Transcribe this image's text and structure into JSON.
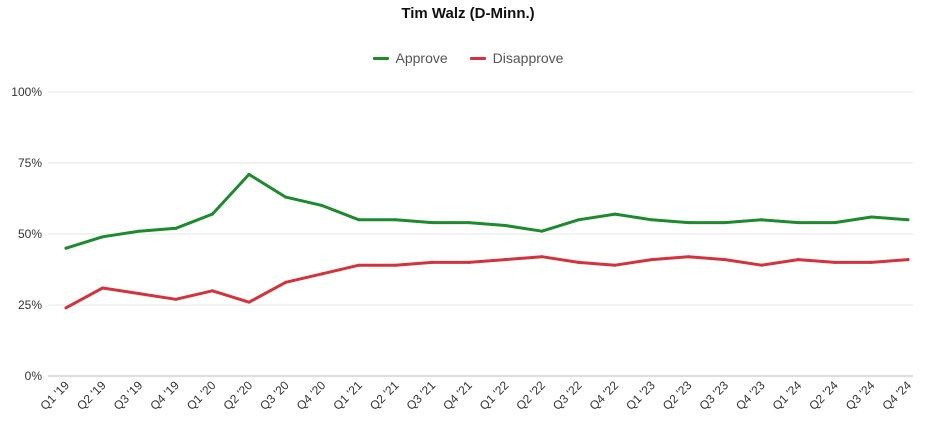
{
  "chart_data": {
    "type": "line",
    "title": "Tim Walz (D-Minn.)",
    "xlabel": "",
    "ylabel": "",
    "ylim": [
      0,
      100
    ],
    "yticks": [
      "0%",
      "25%",
      "50%",
      "75%",
      "100%"
    ],
    "categories": [
      "Q1 '19",
      "Q2 '19",
      "Q3 '19",
      "Q4 '19",
      "Q1 '20",
      "Q2 '20",
      "Q3 '20",
      "Q4 '20",
      "Q1 '21",
      "Q2 '21",
      "Q3 '21",
      "Q4 '21",
      "Q1 '22",
      "Q2 '22",
      "Q3 '22",
      "Q4 '22",
      "Q1 '23",
      "Q2 '23",
      "Q3 '23",
      "Q4 '23",
      "Q1 '24",
      "Q2 '24",
      "Q3 '24",
      "Q4 '24"
    ],
    "series": [
      {
        "name": "Approve",
        "color": "#1e8a2e",
        "values": [
          45,
          49,
          51,
          52,
          57,
          71,
          63,
          60,
          55,
          55,
          54,
          54,
          53,
          51,
          55,
          57,
          55,
          54,
          54,
          55,
          54,
          54,
          56,
          55
        ]
      },
      {
        "name": "Disapprove",
        "color": "#d1343c",
        "values": [
          24,
          31,
          29,
          27,
          30,
          26,
          33,
          36,
          39,
          39,
          40,
          40,
          41,
          42,
          40,
          39,
          41,
          42,
          41,
          39,
          41,
          40,
          40,
          41
        ]
      }
    ],
    "legend_position": "top-center",
    "grid": true
  }
}
